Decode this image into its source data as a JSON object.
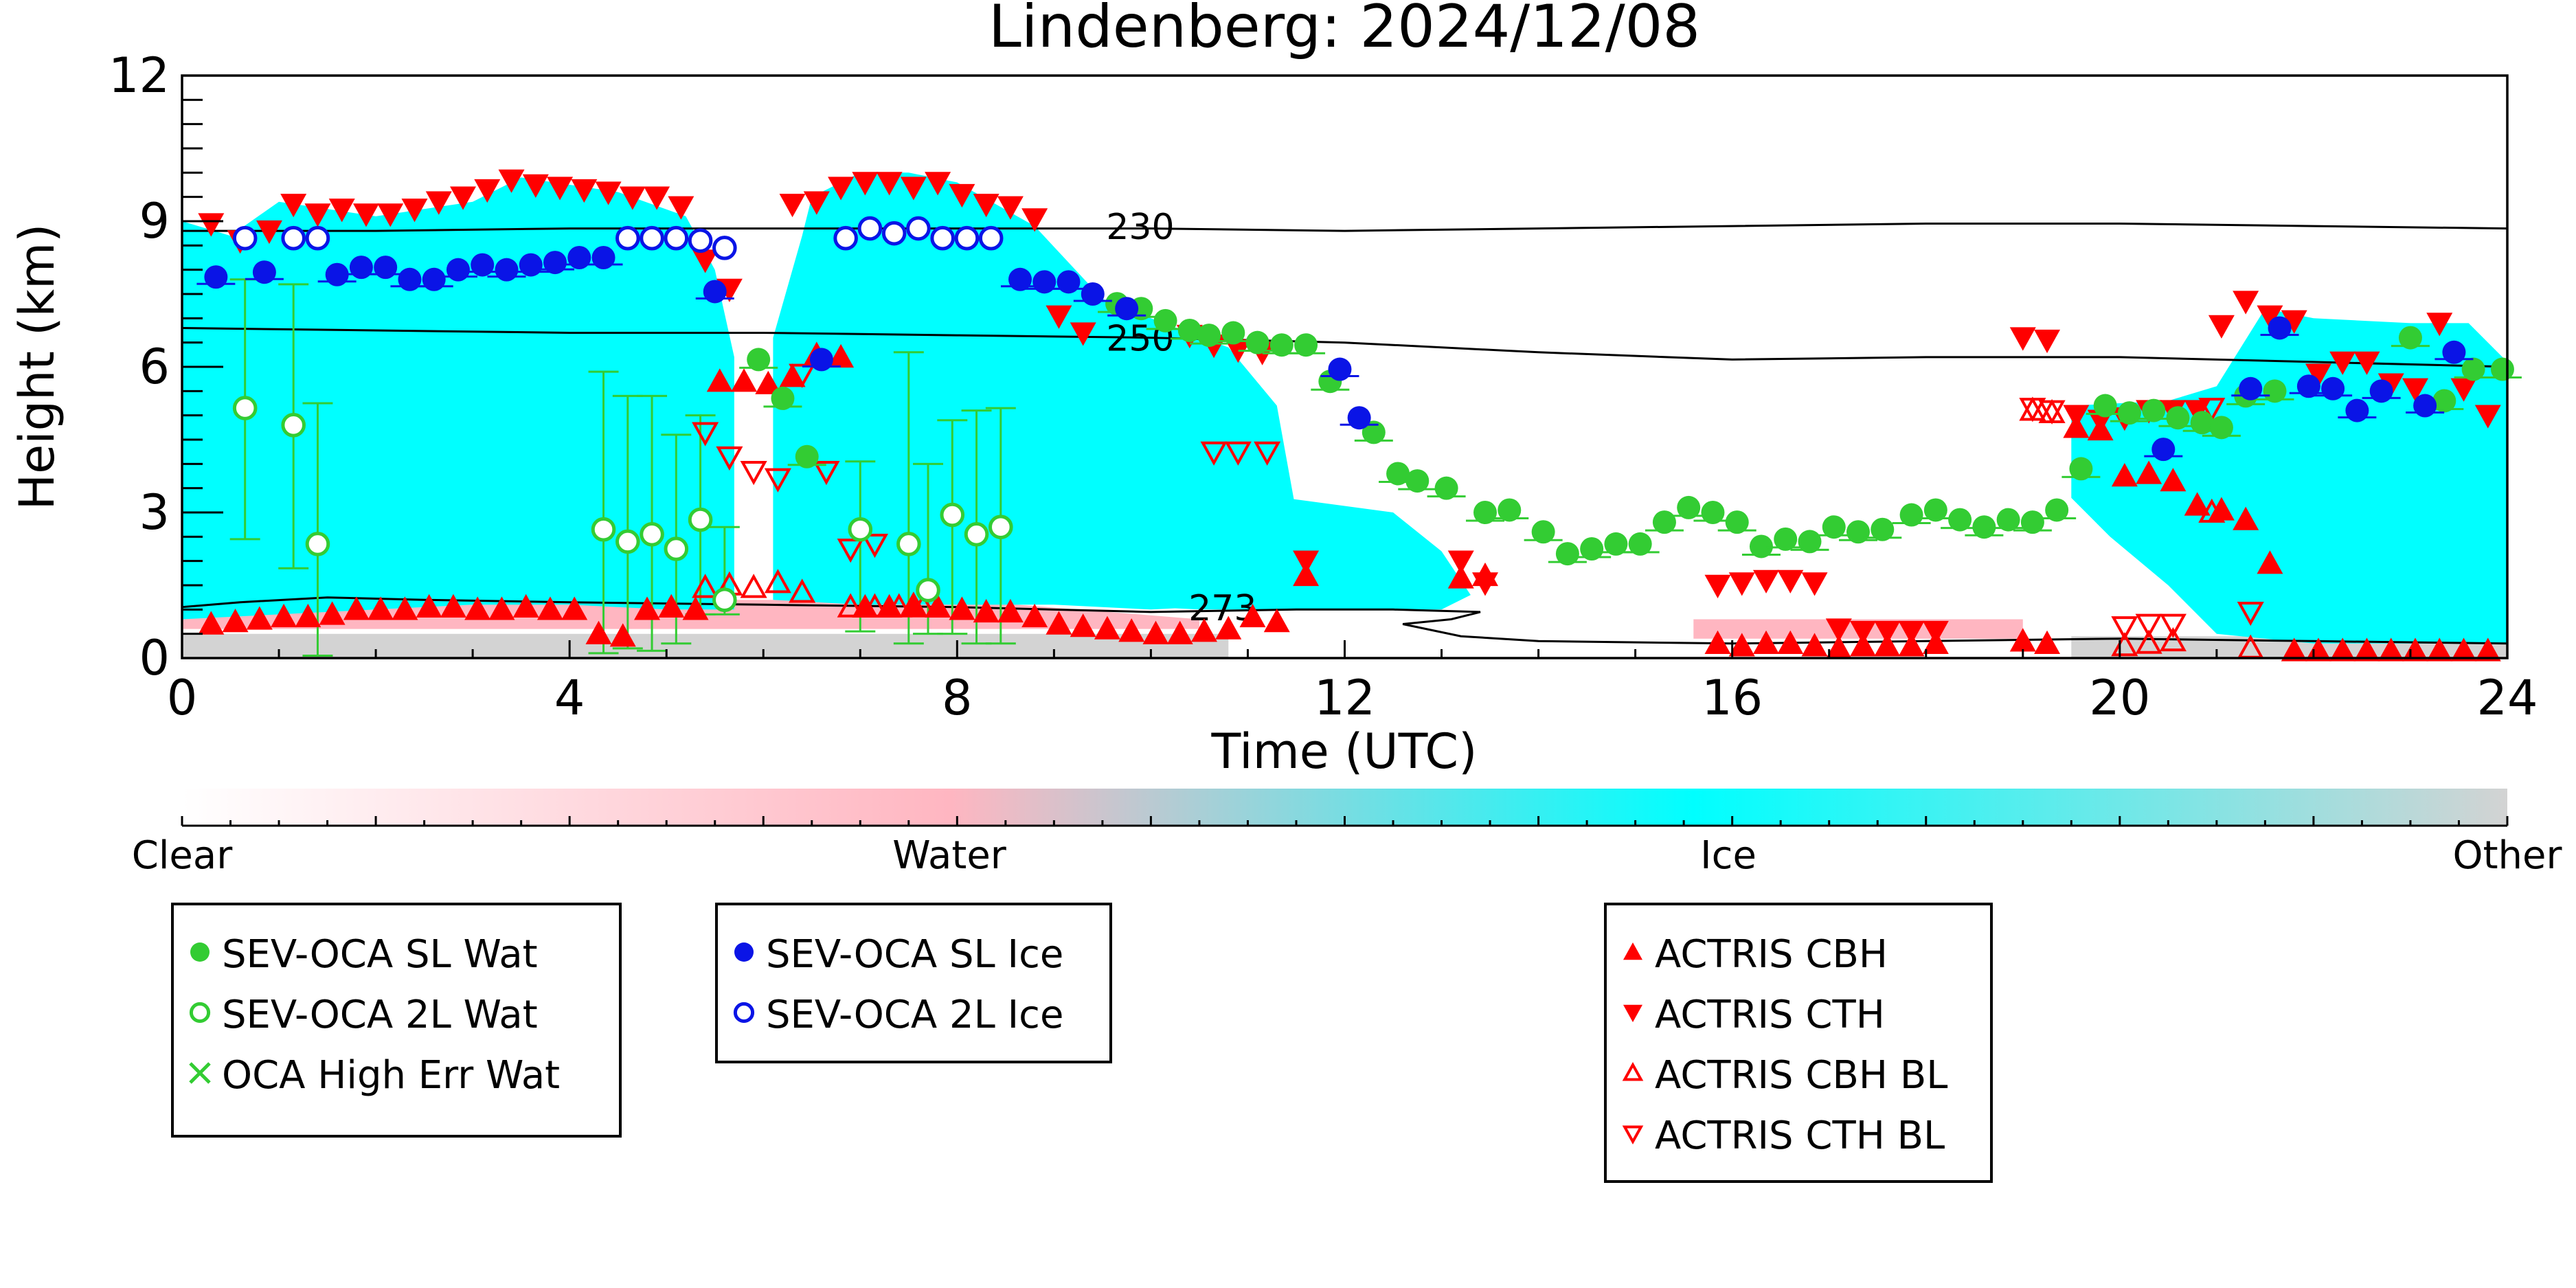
{
  "chart_data": {
    "type": "scatter",
    "title": "Lindenberg: 2024/12/08",
    "xlabel": "Time (UTC)",
    "ylabel": "Height (km)",
    "xlim": [
      0,
      24
    ],
    "ylim": [
      0,
      12
    ],
    "x_ticks": [
      0,
      4,
      8,
      12,
      16,
      20,
      24
    ],
    "y_ticks": [
      0,
      3,
      6,
      9,
      12
    ],
    "x_tick_labels": [
      "0",
      "4",
      "8",
      "12",
      "16",
      "20",
      "24"
    ],
    "y_tick_labels": [
      "0",
      "3",
      "6",
      "9",
      "12"
    ],
    "grid": false,
    "background_classification": {
      "colorbar_labels": [
        "Clear",
        "Water",
        "Ice",
        "Other"
      ],
      "colors": {
        "clear": "#ffffff",
        "water": "#ffb6c1",
        "ice": "#00ffff",
        "other": "#d3d3d3"
      },
      "ice_regions": [
        {
          "x": [
            0.0,
            0.5,
            1.0,
            2.0,
            3.0,
            3.5,
            4.5,
            5.2,
            5.5,
            5.7,
            5.7,
            5.0,
            4.0,
            3.0,
            2.0,
            1.0,
            0.0
          ],
          "y": [
            9.0,
            8.7,
            9.4,
            9.1,
            9.4,
            9.9,
            9.6,
            9.1,
            8.0,
            6.2,
            1.0,
            1.0,
            1.1,
            1.1,
            1.0,
            0.9,
            0.8
          ]
        },
        {
          "x": [
            6.1,
            6.4,
            6.5,
            7.0,
            7.5,
            8.0,
            8.8,
            9.5,
            10.0,
            10.8,
            11.3,
            11.5,
            11.4,
            11.0,
            10.0,
            9.0,
            8.0,
            7.0,
            6.1
          ],
          "y": [
            6.6,
            8.7,
            9.5,
            10.0,
            10.0,
            9.8,
            8.9,
            7.4,
            7.0,
            6.4,
            5.2,
            3.0,
            1.2,
            1.1,
            1.0,
            1.1,
            1.1,
            1.1,
            1.2
          ]
        },
        {
          "x": [
            19.5,
            20.5,
            21.0,
            21.5,
            22.0,
            23.0,
            23.6,
            24.0,
            24.0,
            22.0,
            21.0,
            20.5,
            19.9,
            19.5
          ],
          "y": [
            5.2,
            5.3,
            5.6,
            7.2,
            7.0,
            6.9,
            6.9,
            6.1,
            0.3,
            0.3,
            0.5,
            1.5,
            2.5,
            3.3
          ]
        },
        {
          "x": [
            8.5,
            9.5,
            11.0,
            12.5,
            13.0,
            13.3,
            13.0,
            12.0,
            10.5,
            9.5,
            8.5
          ],
          "y": [
            3.0,
            2.7,
            3.4,
            3.0,
            2.2,
            1.3,
            1.0,
            1.0,
            1.0,
            1.1,
            1.5
          ]
        }
      ],
      "water_regions": [
        {
          "x": [
            0.0,
            4.0,
            8.0,
            10.5,
            10.5,
            8.0,
            4.0,
            0.0
          ],
          "y": [
            1.0,
            1.2,
            1.2,
            0.8,
            0.6,
            0.6,
            0.6,
            0.6
          ]
        },
        {
          "x": [
            15.6,
            19.0,
            19.0,
            15.6
          ],
          "y": [
            0.8,
            0.8,
            0.4,
            0.4
          ]
        }
      ],
      "other_regions": [
        {
          "x": [
            0.0,
            10.8,
            10.8,
            0.0
          ],
          "y": [
            0.5,
            0.5,
            0.0,
            0.0
          ]
        },
        {
          "x": [
            19.5,
            24.0,
            24.0,
            19.5
          ],
          "y": [
            0.45,
            0.45,
            0.0,
            0.0
          ]
        }
      ]
    },
    "isotherms": [
      {
        "label": "230",
        "label_x": 9.55,
        "label_y": 8.9,
        "x": [
          0,
          2,
          4,
          6,
          8,
          10,
          12,
          14,
          16,
          18,
          20,
          22,
          24
        ],
        "y": [
          8.8,
          8.8,
          8.85,
          8.85,
          8.85,
          8.85,
          8.8,
          8.85,
          8.9,
          8.95,
          8.95,
          8.9,
          8.85
        ]
      },
      {
        "label": "250",
        "label_x": 9.55,
        "label_y": 6.6,
        "x": [
          0,
          2,
          4,
          6,
          8,
          10,
          12,
          14,
          16,
          18,
          20,
          22,
          24
        ],
        "y": [
          6.8,
          6.75,
          6.7,
          6.7,
          6.65,
          6.6,
          6.5,
          6.3,
          6.15,
          6.2,
          6.2,
          6.1,
          6.0
        ]
      },
      {
        "label": "273",
        "label_x": 10.4,
        "label_y": 1.05,
        "x": [
          0,
          0.6,
          1.5,
          2.5,
          4,
          6,
          8,
          10,
          11.5,
          12.5,
          13.4,
          13.1,
          12.6,
          13.2,
          14,
          16,
          18,
          20,
          22,
          24
        ],
        "y": [
          1.05,
          1.15,
          1.25,
          1.2,
          1.15,
          1.1,
          1.05,
          0.95,
          1.0,
          1.0,
          0.95,
          0.8,
          0.7,
          0.45,
          0.35,
          0.3,
          0.35,
          0.4,
          0.35,
          0.3
        ]
      }
    ],
    "series": [
      {
        "name": "SEV-OCA SL Wat",
        "color": "#33cc33",
        "marker": "filled-circle",
        "x": [
          5.95,
          6.2,
          6.45,
          9.65,
          9.9,
          10.15,
          10.4,
          10.6,
          10.85,
          11.1,
          11.35,
          11.6,
          11.85,
          12.3,
          12.55,
          12.75,
          13.05,
          13.45,
          13.7,
          14.05,
          14.3,
          14.55,
          14.8,
          15.05,
          15.3,
          15.55,
          15.8,
          16.05,
          16.3,
          16.55,
          16.8,
          17.05,
          17.3,
          17.55,
          17.85,
          18.1,
          18.35,
          18.6,
          18.85,
          19.1,
          19.35,
          19.6,
          19.85,
          20.1,
          20.35,
          20.6,
          20.85,
          21.05,
          21.3,
          21.6,
          23.0,
          23.35,
          23.65,
          23.95
        ],
        "y": [
          6.15,
          5.35,
          4.15,
          7.3,
          7.2,
          6.95,
          6.75,
          6.65,
          6.7,
          6.5,
          6.45,
          6.45,
          5.7,
          4.65,
          3.8,
          3.65,
          3.5,
          3.0,
          3.05,
          2.6,
          2.15,
          2.25,
          2.35,
          2.35,
          2.8,
          3.1,
          3.0,
          2.8,
          2.3,
          2.45,
          2.4,
          2.7,
          2.6,
          2.65,
          2.95,
          3.05,
          2.85,
          2.7,
          2.85,
          2.8,
          3.05,
          3.9,
          5.2,
          5.05,
          5.1,
          4.95,
          4.85,
          4.75,
          5.4,
          5.5,
          6.6,
          5.3,
          5.95,
          5.95
        ]
      },
      {
        "name": "SEV-OCA 2L Wat",
        "color": "#33cc33",
        "marker": "open-circle",
        "x": [
          0.65,
          1.15,
          1.4,
          4.35,
          4.6,
          4.85,
          5.1,
          5.35,
          5.6,
          7.0,
          7.5,
          7.7,
          7.95,
          8.2,
          8.45
        ],
        "y": [
          5.15,
          4.8,
          2.35,
          2.65,
          2.4,
          2.55,
          2.25,
          2.85,
          1.2,
          2.65,
          2.35,
          1.4,
          2.95,
          2.55,
          2.7
        ]
      },
      {
        "name": "SEV-OCA SL Ice",
        "color": "#0a14e6",
        "marker": "filled-circle",
        "x": [
          0.35,
          0.85,
          1.6,
          1.85,
          2.1,
          2.35,
          2.6,
          2.85,
          3.1,
          3.35,
          3.6,
          3.85,
          4.1,
          4.35,
          5.5,
          6.6,
          8.65,
          8.9,
          9.15,
          9.4,
          9.75,
          11.95,
          12.15,
          20.45,
          21.35,
          21.65,
          21.95,
          22.2,
          22.45,
          22.7,
          23.15,
          23.45
        ],
        "y": [
          7.85,
          7.95,
          7.9,
          8.05,
          8.05,
          7.8,
          7.8,
          8.0,
          8.1,
          8.0,
          8.1,
          8.15,
          8.25,
          8.25,
          7.55,
          6.15,
          7.8,
          7.75,
          7.75,
          7.5,
          7.2,
          5.95,
          4.95,
          4.3,
          5.55,
          6.8,
          5.6,
          5.55,
          5.1,
          5.5,
          5.2,
          6.3
        ]
      },
      {
        "name": "SEV-OCA 2L Ice",
        "color": "#0a14e6",
        "marker": "open-circle",
        "x": [
          0.65,
          1.15,
          1.4,
          4.6,
          4.85,
          5.1,
          5.35,
          5.6,
          6.85,
          7.1,
          7.35,
          7.6,
          7.85,
          8.1,
          8.35
        ],
        "y": [
          8.65,
          8.65,
          8.65,
          8.65,
          8.65,
          8.65,
          8.6,
          8.45,
          8.65,
          8.85,
          8.75,
          8.85,
          8.65,
          8.65,
          8.65
        ]
      },
      {
        "name": "OCA High Err Wat",
        "color": "#33cc33",
        "marker": "x",
        "x": [],
        "y": []
      },
      {
        "name": "ACTRIS CBH",
        "color": "#ff0000",
        "marker": "triangle-up",
        "x": [
          0.3,
          0.55,
          0.8,
          1.05,
          1.3,
          1.55,
          1.8,
          2.05,
          2.3,
          2.55,
          2.8,
          3.05,
          3.3,
          3.55,
          3.8,
          4.05,
          4.3,
          4.55,
          4.8,
          5.05,
          5.3,
          5.55,
          5.8,
          6.05,
          6.3,
          6.55,
          6.8,
          7.05,
          7.3,
          7.55,
          7.8,
          8.05,
          8.3,
          8.55,
          8.8,
          9.05,
          9.3,
          9.55,
          9.8,
          10.05,
          10.3,
          10.55,
          10.8,
          11.05,
          11.3,
          11.6,
          13.2,
          13.45,
          15.85,
          16.1,
          16.35,
          16.6,
          16.85,
          17.1,
          17.35,
          17.6,
          17.85,
          18.1,
          19.0,
          19.25,
          19.55,
          19.8,
          20.05,
          20.3,
          20.55,
          20.8,
          21.05,
          21.3,
          21.55,
          21.8,
          22.05,
          22.3,
          22.55,
          22.8,
          23.05,
          23.3,
          23.55,
          23.8
        ],
        "y": [
          0.7,
          0.75,
          0.8,
          0.85,
          0.85,
          0.9,
          1.0,
          1.0,
          1.0,
          1.05,
          1.05,
          1.0,
          1.0,
          1.05,
          1.0,
          1.0,
          0.5,
          0.45,
          1.0,
          1.05,
          1.0,
          5.7,
          5.7,
          5.65,
          5.8,
          6.25,
          6.2,
          1.05,
          1.05,
          1.1,
          1.05,
          1.0,
          0.95,
          0.95,
          0.85,
          0.7,
          0.65,
          0.6,
          0.55,
          0.5,
          0.5,
          0.55,
          0.6,
          0.85,
          0.75,
          1.7,
          1.65,
          1.7,
          0.3,
          0.25,
          0.3,
          0.3,
          0.25,
          0.2,
          0.25,
          0.25,
          0.25,
          0.3,
          0.35,
          0.3,
          4.75,
          4.7,
          3.75,
          3.8,
          3.65,
          3.15,
          3.05,
          2.85,
          1.95,
          0.15,
          0.15,
          0.15,
          0.15,
          0.15,
          0.15,
          0.15,
          0.15,
          0.15
        ]
      },
      {
        "name": "ACTRIS CTH",
        "color": "#ff0000",
        "marker": "triangle-down",
        "x": [
          0.3,
          0.6,
          0.9,
          1.15,
          1.4,
          1.65,
          1.9,
          2.15,
          2.4,
          2.65,
          2.9,
          3.15,
          3.4,
          3.65,
          3.9,
          4.15,
          4.4,
          4.65,
          4.9,
          5.15,
          5.4,
          5.65,
          6.3,
          6.55,
          6.8,
          7.05,
          7.3,
          7.55,
          7.8,
          8.05,
          8.3,
          8.55,
          8.8,
          9.05,
          9.3,
          10.4,
          10.65,
          10.9,
          11.15,
          11.6,
          13.2,
          13.45,
          15.85,
          16.1,
          16.35,
          16.6,
          16.85,
          17.1,
          17.35,
          17.6,
          17.85,
          18.1,
          19.0,
          19.25,
          19.55,
          19.8,
          20.05,
          20.3,
          20.55,
          20.8,
          21.05,
          21.3,
          21.55,
          21.8,
          22.05,
          22.3,
          22.55,
          22.8,
          23.05,
          23.3,
          23.55,
          23.8
        ],
        "y": [
          8.95,
          8.6,
          8.8,
          9.35,
          9.15,
          9.25,
          9.15,
          9.15,
          9.25,
          9.4,
          9.5,
          9.65,
          9.85,
          9.75,
          9.7,
          9.65,
          9.6,
          9.5,
          9.5,
          9.3,
          8.2,
          7.6,
          9.35,
          9.4,
          9.7,
          9.8,
          9.8,
          9.7,
          9.8,
          9.55,
          9.35,
          9.3,
          9.05,
          7.05,
          6.7,
          6.65,
          6.45,
          6.35,
          6.3,
          2.0,
          2.0,
          1.55,
          1.5,
          1.55,
          1.6,
          1.6,
          1.55,
          0.6,
          0.55,
          0.55,
          0.55,
          0.55,
          6.6,
          6.55,
          5.0,
          4.9,
          4.95,
          5.1,
          5.1,
          5.1,
          6.85,
          7.35,
          7.05,
          6.95,
          5.85,
          6.1,
          6.1,
          5.65,
          5.55,
          6.9,
          5.55,
          5.0
        ]
      },
      {
        "name": "ACTRIS CBH BL",
        "color": "#ff0000",
        "marker": "open-triangle-up",
        "x": [
          5.4,
          5.65,
          5.9,
          6.15,
          6.4,
          6.9,
          7.15,
          7.4,
          7.65,
          19.1,
          19.3,
          20.05,
          20.3,
          20.55,
          20.95,
          21.35
        ],
        "y": [
          1.45,
          1.5,
          1.45,
          1.55,
          1.35,
          1.05,
          1.05,
          1.05,
          1.05,
          5.1,
          5.05,
          0.25,
          0.3,
          0.35,
          3.0,
          0.2
        ]
      },
      {
        "name": "ACTRIS CTH BL",
        "color": "#ff0000",
        "marker": "open-triangle-down",
        "x": [
          5.4,
          5.65,
          5.9,
          6.15,
          6.4,
          6.65,
          6.9,
          7.15,
          10.65,
          10.9,
          11.2,
          19.1,
          19.3,
          20.05,
          20.3,
          20.55,
          20.95,
          21.35
        ],
        "y": [
          4.65,
          4.15,
          3.85,
          3.7,
          5.85,
          3.85,
          2.25,
          2.35,
          4.25,
          4.25,
          4.25,
          5.15,
          5.1,
          0.65,
          0.7,
          0.7,
          5.15,
          0.95
        ]
      }
    ],
    "error_bars": {
      "sev_oca_2l_wat": [
        {
          "x": 0.65,
          "low": 2.45,
          "high": 7.8
        },
        {
          "x": 1.15,
          "low": 1.85,
          "high": 7.7
        },
        {
          "x": 1.4,
          "low": 0.05,
          "high": 5.25
        },
        {
          "x": 4.35,
          "low": 0.1,
          "high": 5.9
        },
        {
          "x": 4.6,
          "low": 0.2,
          "high": 5.4
        },
        {
          "x": 4.85,
          "low": 0.15,
          "high": 5.4
        },
        {
          "x": 5.1,
          "low": 0.3,
          "high": 4.6
        },
        {
          "x": 5.35,
          "low": 0.9,
          "high": 5.0
        },
        {
          "x": 5.6,
          "low": 0.9,
          "high": 2.7
        },
        {
          "x": 7.0,
          "low": 0.55,
          "high": 4.05
        },
        {
          "x": 7.5,
          "low": 0.3,
          "high": 6.3
        },
        {
          "x": 7.7,
          "low": 0.5,
          "high": 4.0
        },
        {
          "x": 7.95,
          "low": 0.5,
          "high": 4.9
        },
        {
          "x": 8.2,
          "low": 0.3,
          "high": 5.1
        },
        {
          "x": 8.45,
          "low": 0.3,
          "high": 5.15
        }
      ]
    },
    "colorbar": {
      "labels": [
        "Clear",
        "Water",
        "Ice",
        "Other"
      ],
      "stops": [
        {
          "value": 0.0,
          "color": "#ffffff"
        },
        {
          "value": 0.33,
          "color": "#ffb6c1"
        },
        {
          "value": 0.65,
          "color": "#00ffff"
        },
        {
          "value": 1.0,
          "color": "#d3d3d3"
        }
      ]
    },
    "legend_placement": "below-plot"
  },
  "legend_groups": [
    [
      "SEV-OCA SL Wat",
      "SEV-OCA 2L Wat",
      "OCA High Err Wat"
    ],
    [
      "SEV-OCA SL Ice",
      "SEV-OCA 2L Ice"
    ],
    [
      "ACTRIS CBH",
      "ACTRIS CTH",
      "ACTRIS CBH BL",
      "ACTRIS CTH BL"
    ]
  ]
}
